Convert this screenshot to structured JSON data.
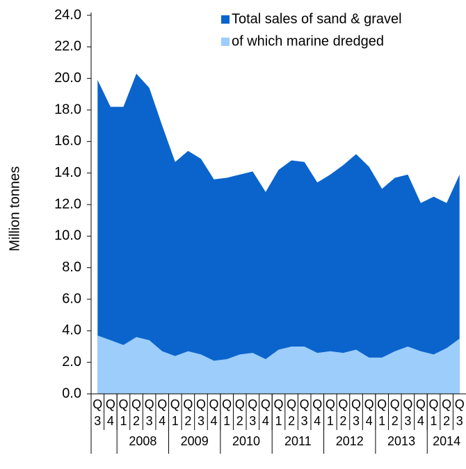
{
  "chart_data": {
    "type": "area",
    "y_label": "Million tonnes",
    "categories": [
      "Q3",
      "Q4",
      "Q1",
      "Q2",
      "Q3",
      "Q4",
      "Q1",
      "Q2",
      "Q3",
      "Q4",
      "Q1",
      "Q2",
      "Q3",
      "Q4",
      "Q1",
      "Q2",
      "Q3",
      "Q4",
      "Q1",
      "Q2",
      "Q3",
      "Q4",
      "Q1",
      "Q2",
      "Q3",
      "Q4",
      "Q1",
      "Q2",
      "Q3"
    ],
    "years": [
      null,
      null,
      "2008",
      "2008",
      "2008",
      "2008",
      "2009",
      "2009",
      "2009",
      "2009",
      "2010",
      "2010",
      "2010",
      "2010",
      "2011",
      "2011",
      "2011",
      "2011",
      "2012",
      "2012",
      "2012",
      "2012",
      "2013",
      "2013",
      "2013",
      "2013",
      "2014",
      "2014",
      "2014"
    ],
    "series": [
      {
        "name": "Total sales of sand & gravel",
        "color": "#0a64cc",
        "values": [
          19.9,
          18.2,
          18.2,
          20.3,
          19.4,
          17.0,
          14.7,
          15.4,
          14.9,
          13.6,
          13.7,
          13.9,
          14.1,
          12.8,
          14.2,
          14.8,
          14.7,
          13.4,
          13.9,
          14.5,
          15.2,
          14.4,
          13.0,
          13.7,
          13.9,
          12.1,
          12.5,
          12.1,
          13.9
        ]
      },
      {
        "name": "of which marine dredged",
        "color": "#9dcdfb",
        "values": [
          3.7,
          3.4,
          3.1,
          3.6,
          3.4,
          2.7,
          2.4,
          2.7,
          2.5,
          2.1,
          2.2,
          2.5,
          2.6,
          2.2,
          2.8,
          3.0,
          3.0,
          2.6,
          2.7,
          2.6,
          2.8,
          2.3,
          2.3,
          2.7,
          3.0,
          2.7,
          2.5,
          2.9,
          3.5
        ]
      }
    ],
    "ylim": [
      0,
      24
    ],
    "yticks": [
      {
        "value": 0,
        "label": "0.0"
      },
      {
        "value": 2,
        "label": "2.0"
      },
      {
        "value": 4,
        "label": "4.0"
      },
      {
        "value": 6,
        "label": "6.0"
      },
      {
        "value": 8,
        "label": "8.0"
      },
      {
        "value": 10,
        "label": "10.0"
      },
      {
        "value": 12,
        "label": "12.0"
      },
      {
        "value": 14,
        "label": "14.0"
      },
      {
        "value": 16,
        "label": "16.0"
      },
      {
        "value": 18,
        "label": "18.0"
      },
      {
        "value": 20,
        "label": "20.0"
      },
      {
        "value": 22,
        "label": "22.0"
      },
      {
        "value": 24,
        "label": "24.0"
      }
    ],
    "legend": "top-right"
  }
}
